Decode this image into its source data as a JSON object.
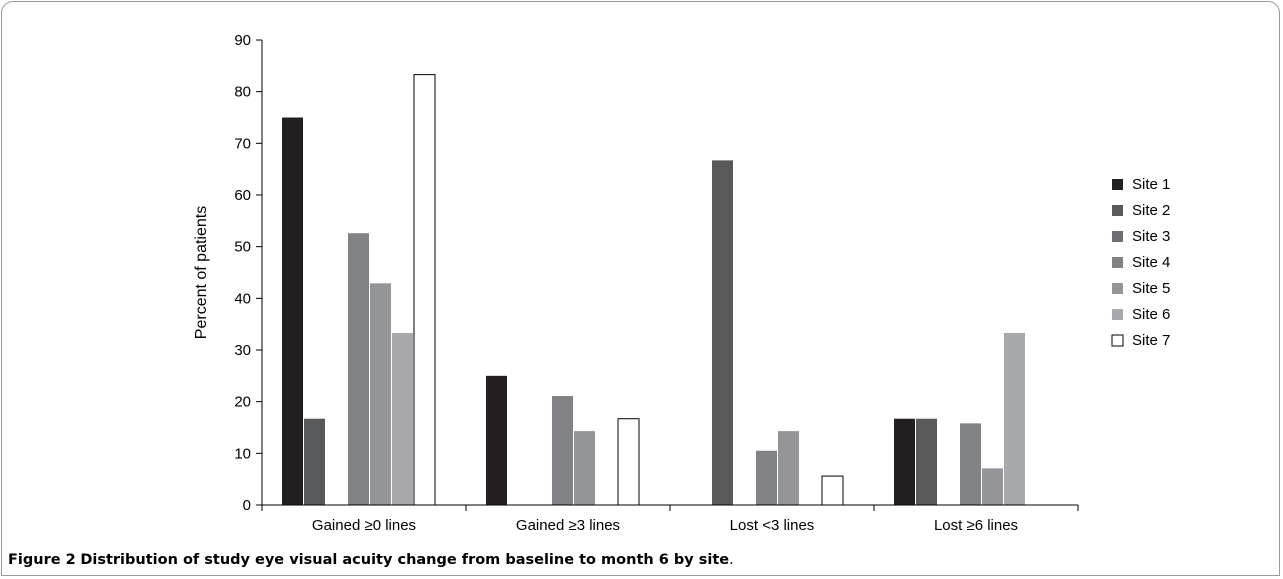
{
  "caption": {
    "label": "Figure 2",
    "text": "Distribution of study eye visual acuity change from baseline to month 6 by site",
    "end": "."
  },
  "chart_data": {
    "type": "bar",
    "title": "",
    "xlabel": "",
    "ylabel": "Percent of patients",
    "ylim": [
      0,
      90
    ],
    "yticks": [
      0,
      10,
      20,
      30,
      40,
      50,
      60,
      70,
      80,
      90
    ],
    "grid": false,
    "legend": "right",
    "categories": [
      "Gained ≥0 lines",
      "Gained ≥3 lines",
      "Lost <3 lines",
      "Lost ≥6 lines"
    ],
    "series": [
      {
        "name": "Site 1",
        "color": "#231f20",
        "values": [
          75,
          25,
          0,
          16.7
        ]
      },
      {
        "name": "Site 2",
        "color": "#58595b",
        "values": [
          16.7,
          0,
          66.7,
          16.7
        ]
      },
      {
        "name": "Site 3",
        "color": "#6d6e71",
        "values": [
          0,
          0,
          0,
          0
        ]
      },
      {
        "name": "Site 4",
        "color": "#808285",
        "values": [
          52.6,
          21.1,
          10.5,
          15.8
        ]
      },
      {
        "name": "Site 5",
        "color": "#939598",
        "values": [
          42.9,
          14.3,
          14.3,
          7.1
        ]
      },
      {
        "name": "Site 6",
        "color": "#a7a9ac",
        "values": [
          33.3,
          0,
          0,
          33.3
        ]
      },
      {
        "name": "Site 7",
        "color": "#ffffff",
        "values": [
          83.3,
          16.7,
          5.6,
          0
        ]
      }
    ]
  }
}
